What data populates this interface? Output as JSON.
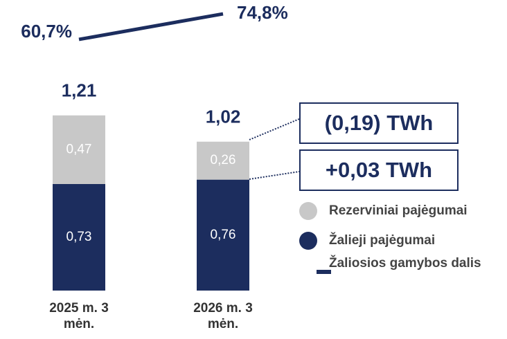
{
  "chart_data": {
    "type": "bar",
    "categories": [
      "2025 m. 3 mėn.",
      "2026 m. 3 mėn."
    ],
    "series": [
      {
        "name": "Rezerviniai pajėgumai",
        "color": "#c8c8c8",
        "values": [
          0.47,
          0.26
        ],
        "value_labels": [
          "0,47",
          "0,26"
        ]
      },
      {
        "name": "Žalieji pajėgumai",
        "color": "#1c2d5e",
        "values": [
          0.73,
          0.76
        ],
        "value_labels": [
          "0,73",
          "0,76"
        ]
      },
      {
        "name": "Žaliosios gamybos dalis",
        "color": "#1c2d5e",
        "type": "line",
        "axis": "y2",
        "values": [
          60.7,
          74.8
        ],
        "value_labels": [
          "60,7%",
          "74,8%"
        ]
      }
    ],
    "totals": [
      1.21,
      1.02
    ],
    "total_labels": [
      "1,21",
      "1,02"
    ],
    "annotations": [
      "(0,19) TWh",
      "+0,03 TWh"
    ],
    "ylim": [
      0,
      2
    ],
    "y2lim": [
      0,
      100
    ]
  }
}
